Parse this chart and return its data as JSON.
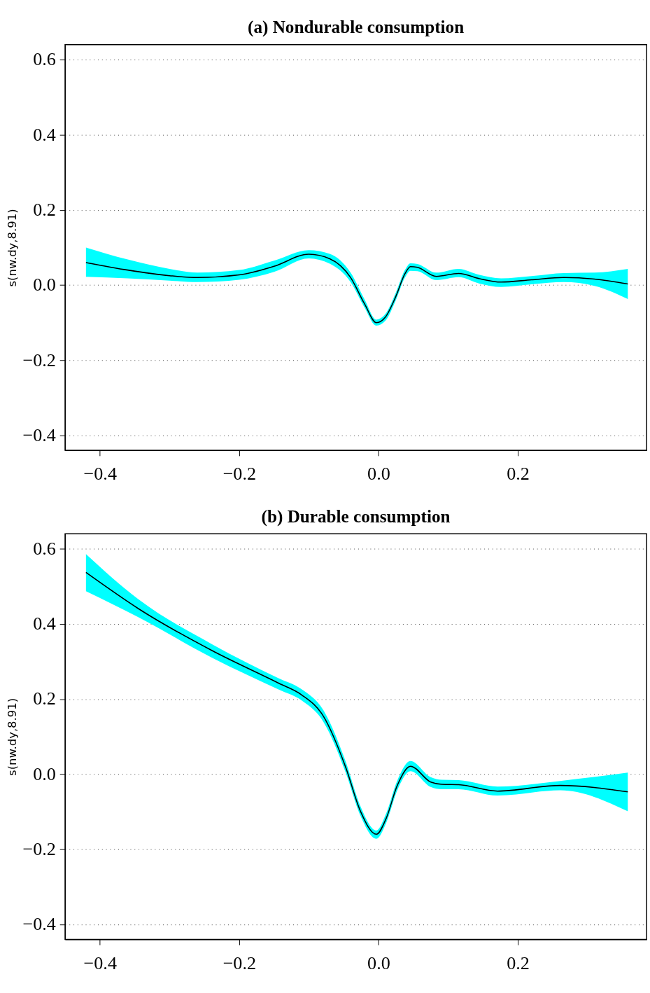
{
  "chart_data": [
    {
      "type": "line",
      "title": "(a) Nondurable consumption",
      "ylabel": "s(nw.dy,8.91)",
      "x": [
        -0.42,
        -0.36,
        -0.3,
        -0.26,
        -0.2,
        -0.15,
        -0.1,
        -0.07,
        -0.04,
        -0.02,
        -0.003,
        0.01,
        0.025,
        0.038,
        0.046,
        0.056,
        0.083,
        0.115,
        0.145,
        0.176,
        0.22,
        0.266,
        0.31,
        0.358
      ],
      "series": [
        {
          "color": "#000000",
          "values": [
            0.06,
            0.04,
            0.025,
            0.02,
            0.027,
            0.05,
            0.082,
            0.07,
            0.02,
            -0.05,
            -0.1,
            -0.085,
            -0.03,
            0.03,
            0.049,
            0.047,
            0.023,
            0.031,
            0.017,
            0.008,
            0.014,
            0.02,
            0.016,
            0.003
          ],
          "lower": [
            0.022,
            0.018,
            0.012,
            0.008,
            0.014,
            0.035,
            0.071,
            0.057,
            0.008,
            -0.06,
            -0.108,
            -0.095,
            -0.04,
            0.02,
            0.038,
            0.037,
            0.013,
            0.021,
            0.004,
            -0.005,
            0.002,
            0.008,
            -0.002,
            -0.037
          ],
          "upper": [
            0.1,
            0.068,
            0.043,
            0.033,
            0.04,
            0.065,
            0.093,
            0.083,
            0.033,
            -0.038,
            -0.092,
            -0.077,
            -0.02,
            0.04,
            0.058,
            0.056,
            0.033,
            0.043,
            0.027,
            0.018,
            0.024,
            0.032,
            0.033,
            0.043
          ]
        }
      ],
      "xlim": [
        -0.45,
        0.385
      ],
      "ylim": [
        -0.44,
        0.64
      ],
      "xticks": [
        {
          "value": -0.4,
          "label": "−0.4"
        },
        {
          "value": -0.2,
          "label": "−0.2"
        },
        {
          "value": 0,
          "label": "0.0"
        },
        0.2
      ],
      "yticks": [
        {
          "value": -0.4,
          "label": "−0.4"
        },
        {
          "value": -0.2,
          "label": "−0.2"
        },
        {
          "value": 0,
          "label": "0.0"
        },
        0.2,
        0.4,
        0.6
      ],
      "grid": "y",
      "line_style": "solid"
    },
    {
      "type": "line",
      "title": "(b) Durable consumption",
      "ylabel": "s(nw.dy,8.91)",
      "x": [
        -0.42,
        -0.345,
        -0.239,
        -0.143,
        -0.111,
        -0.079,
        -0.047,
        -0.026,
        -0.003,
        0.011,
        0.027,
        0.046,
        0.075,
        0.091,
        0.115,
        0.171,
        0.261,
        0.358
      ],
      "series": [
        {
          "color": "#000000",
          "values": [
            0.537,
            0.441,
            0.329,
            0.242,
            0.212,
            0.154,
            0.018,
            -0.098,
            -0.16,
            -0.118,
            -0.03,
            0.021,
            -0.021,
            -0.027,
            -0.028,
            -0.045,
            -0.03,
            -0.047
          ],
          "lower": [
            0.487,
            0.418,
            0.31,
            0.225,
            0.197,
            0.139,
            0.004,
            -0.11,
            -0.172,
            -0.13,
            -0.043,
            0.008,
            -0.034,
            -0.04,
            -0.04,
            -0.057,
            -0.043,
            -0.099
          ],
          "upper": [
            0.586,
            0.466,
            0.346,
            0.255,
            0.227,
            0.17,
            0.033,
            -0.085,
            -0.15,
            -0.105,
            -0.017,
            0.035,
            -0.008,
            -0.015,
            -0.016,
            -0.033,
            -0.018,
            0.004
          ]
        }
      ],
      "xlim": [
        -0.45,
        0.385
      ],
      "ylim": [
        -0.44,
        0.64
      ],
      "xticks": [
        {
          "value": -0.4,
          "label": "−0.4"
        },
        {
          "value": -0.2,
          "label": "−0.2"
        },
        {
          "value": 0,
          "label": "0.0"
        },
        0.2
      ],
      "yticks": [
        {
          "value": -0.4,
          "label": "−0.4"
        },
        {
          "value": -0.2,
          "label": "−0.2"
        },
        {
          "value": 0,
          "label": "0.0"
        },
        0.2,
        0.4,
        0.6
      ],
      "grid": "y",
      "line_style": "solid"
    }
  ]
}
